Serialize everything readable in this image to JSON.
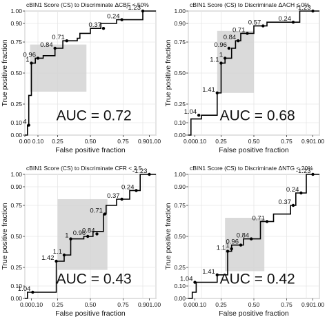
{
  "chart_data": [
    {
      "type": "line",
      "title": "cBIN1 Score (CS) to Discriminate ΔCBF < 50%",
      "xlabel": "False positive fraction",
      "ylabel": "True positive fraction",
      "xlim": [
        0,
        1
      ],
      "ylim": [
        0,
        1
      ],
      "x_ticks": [
        "0.00",
        "0.10",
        "0.25",
        "0.50",
        "0.75",
        "0.901.00"
      ],
      "y_ticks": [
        "0.00",
        "0.10",
        "0.25",
        "0.50",
        "0.75",
        "0.90",
        "1.00"
      ],
      "grid": true,
      "auc_label": "AUC = 0.72",
      "roc": [
        [
          0,
          0
        ],
        [
          0.02,
          0
        ],
        [
          0.02,
          0.08
        ],
        [
          0.03,
          0.08
        ],
        [
          0.03,
          0.32
        ],
        [
          0.05,
          0.32
        ],
        [
          0.05,
          0.58
        ],
        [
          0.08,
          0.58
        ],
        [
          0.08,
          0.62
        ],
        [
          0.14,
          0.62
        ],
        [
          0.14,
          0.64
        ],
        [
          0.23,
          0.64
        ],
        [
          0.23,
          0.7
        ],
        [
          0.29,
          0.7
        ],
        [
          0.29,
          0.76
        ],
        [
          0.4,
          0.76
        ],
        [
          0.4,
          0.78
        ],
        [
          0.42,
          0.78
        ],
        [
          0.42,
          0.82
        ],
        [
          0.5,
          0.82
        ],
        [
          0.5,
          0.86
        ],
        [
          0.58,
          0.86
        ],
        [
          0.58,
          0.9
        ],
        [
          0.7,
          0.9
        ],
        [
          0.7,
          0.93
        ],
        [
          0.9,
          0.93
        ],
        [
          0.9,
          1.0
        ],
        [
          1.0,
          1.0
        ]
      ],
      "points": [
        {
          "label": "-1.23",
          "x": 0.9,
          "y": 1.0
        },
        {
          "label": "0.24",
          "x": 0.74,
          "y": 0.93
        },
        {
          "label": "0.37",
          "x": 0.6,
          "y": 0.86
        },
        {
          "label": "0.71",
          "x": 0.32,
          "y": 0.76
        },
        {
          "label": "0.84",
          "x": 0.23,
          "y": 0.7
        },
        {
          "label": "0.96",
          "x": 0.1,
          "y": 0.62
        },
        {
          "label": "1",
          "x": 0.05,
          "y": 0.58
        },
        {
          "label": "4",
          "x": 0.03,
          "y": 0.08
        }
      ],
      "ci_box": {
        "x": [
          0.04,
          0.47
        ],
        "y": [
          0.35,
          0.73
        ]
      }
    },
    {
      "type": "line",
      "title": "cBIN1 Score (CS) to Discriminate ΔACH ≤ 0%",
      "xlabel": "False positive fraction",
      "ylabel": "True positive fraction",
      "xlim": [
        0,
        1
      ],
      "ylim": [
        0,
        1
      ],
      "x_ticks": [
        "0.000.10",
        "0.25",
        "0.50",
        "0.75",
        "0.901.00"
      ],
      "y_ticks": [
        "0.00",
        "0.10",
        "0.25",
        "0.50",
        "0.75",
        "0.90",
        "1.00"
      ],
      "grid": true,
      "auc_label": "AUC = 0.68",
      "roc": [
        [
          0,
          0
        ],
        [
          0.02,
          0
        ],
        [
          0.02,
          0.13
        ],
        [
          0.1,
          0.13
        ],
        [
          0.1,
          0.16
        ],
        [
          0.22,
          0.16
        ],
        [
          0.22,
          0.34
        ],
        [
          0.25,
          0.34
        ],
        [
          0.25,
          0.58
        ],
        [
          0.28,
          0.58
        ],
        [
          0.28,
          0.62
        ],
        [
          0.33,
          0.62
        ],
        [
          0.33,
          0.7
        ],
        [
          0.36,
          0.7
        ],
        [
          0.36,
          0.76
        ],
        [
          0.4,
          0.76
        ],
        [
          0.4,
          0.82
        ],
        [
          0.5,
          0.82
        ],
        [
          0.5,
          0.88
        ],
        [
          0.6,
          0.88
        ],
        [
          0.6,
          0.91
        ],
        [
          0.85,
          0.91
        ],
        [
          0.85,
          1.0
        ],
        [
          1.0,
          1.0
        ]
      ],
      "points": [
        {
          "label": "-1.23",
          "x": 0.95,
          "y": 1.0
        },
        {
          "label": "0.24",
          "x": 0.8,
          "y": 0.91
        },
        {
          "label": "0.57",
          "x": 0.57,
          "y": 0.88
        },
        {
          "label": "0.71",
          "x": 0.45,
          "y": 0.82
        },
        {
          "label": "0.84",
          "x": 0.38,
          "y": 0.76
        },
        {
          "label": "0.96",
          "x": 0.31,
          "y": 0.7
        },
        {
          "label": "1",
          "x": 0.28,
          "y": 0.62
        },
        {
          "label": "1.1",
          "x": 0.25,
          "y": 0.58
        },
        {
          "label": "1.41",
          "x": 0.22,
          "y": 0.34
        },
        {
          "label": "1.04",
          "x": 0.08,
          "y": 0.16
        }
      ],
      "ci_box": {
        "x": [
          0.22,
          0.5
        ],
        "y": [
          0.34,
          0.84
        ]
      }
    },
    {
      "type": "line",
      "title": "cBIN1 Score (CS) to Discriminate CFR < 2.5",
      "xlabel": "False positive fraction",
      "ylabel": "True positive fraction",
      "xlim": [
        0,
        1
      ],
      "ylim": [
        0,
        1
      ],
      "x_ticks": [
        "0.000.10",
        "0.25",
        "0.50",
        "0.75",
        "0.901.00"
      ],
      "y_ticks": [
        "0.00",
        "0.10",
        "0.25",
        "0.50",
        "0.75",
        "0.90",
        "1.00"
      ],
      "grid": true,
      "auc_label": "AUC = 0.43",
      "roc": [
        [
          0,
          0
        ],
        [
          0.02,
          0
        ],
        [
          0.02,
          0.05
        ],
        [
          0.24,
          0.05
        ],
        [
          0.24,
          0.3
        ],
        [
          0.3,
          0.3
        ],
        [
          0.3,
          0.35
        ],
        [
          0.35,
          0.35
        ],
        [
          0.35,
          0.48
        ],
        [
          0.45,
          0.48
        ],
        [
          0.45,
          0.5
        ],
        [
          0.52,
          0.5
        ],
        [
          0.52,
          0.54
        ],
        [
          0.6,
          0.54
        ],
        [
          0.6,
          0.68
        ],
        [
          0.62,
          0.68
        ],
        [
          0.62,
          0.75
        ],
        [
          0.7,
          0.75
        ],
        [
          0.7,
          0.8
        ],
        [
          0.8,
          0.8
        ],
        [
          0.8,
          0.87
        ],
        [
          0.88,
          0.87
        ],
        [
          0.88,
          1.0
        ],
        [
          1.0,
          1.0
        ]
      ],
      "points": [
        {
          "label": "-1.23",
          "x": 0.95,
          "y": 1.0
        },
        {
          "label": "0.24",
          "x": 0.85,
          "y": 0.87
        },
        {
          "label": "0.37",
          "x": 0.74,
          "y": 0.8
        },
        {
          "label": "0.71",
          "x": 0.61,
          "y": 0.68
        },
        {
          "label": "0.96",
          "x": 0.48,
          "y": 0.5
        },
        {
          "label": "0.84",
          "x": 0.55,
          "y": 0.52
        },
        {
          "label": "1",
          "x": 0.35,
          "y": 0.48
        },
        {
          "label": "1.1",
          "x": 0.3,
          "y": 0.35
        },
        {
          "label": "1.42",
          "x": 0.24,
          "y": 0.3
        },
        {
          "label": "1.04",
          "x": 0.06,
          "y": 0.05
        }
      ],
      "ci_box": {
        "x": [
          0.25,
          0.63
        ],
        "y": [
          0.23,
          0.8
        ]
      }
    },
    {
      "type": "line",
      "title": "cBIN1 Score (CS) to Discriminate ΔNTG < 20%",
      "xlabel": "False positive fraction",
      "ylabel": "True positive fraction",
      "xlim": [
        0,
        1
      ],
      "ylim": [
        0,
        1
      ],
      "x_ticks": [
        "0.000.10",
        "0.25",
        "0.50",
        "0.75",
        "0.901.00"
      ],
      "y_ticks": [
        "0.00",
        "0.10",
        "0.25",
        "0.50",
        "0.75",
        "0.90",
        "1.00"
      ],
      "grid": true,
      "auc_label": "AUC = 0.42",
      "roc": [
        [
          0,
          0
        ],
        [
          0.03,
          0
        ],
        [
          0.03,
          0.05
        ],
        [
          0.06,
          0.05
        ],
        [
          0.06,
          0.13
        ],
        [
          0.22,
          0.13
        ],
        [
          0.22,
          0.19
        ],
        [
          0.3,
          0.19
        ],
        [
          0.3,
          0.38
        ],
        [
          0.33,
          0.38
        ],
        [
          0.33,
          0.43
        ],
        [
          0.42,
          0.43
        ],
        [
          0.42,
          0.48
        ],
        [
          0.55,
          0.48
        ],
        [
          0.55,
          0.62
        ],
        [
          0.65,
          0.62
        ],
        [
          0.65,
          0.68
        ],
        [
          0.78,
          0.68
        ],
        [
          0.78,
          0.75
        ],
        [
          0.82,
          0.75
        ],
        [
          0.82,
          0.85
        ],
        [
          0.9,
          0.85
        ],
        [
          0.9,
          1.0
        ],
        [
          1.0,
          1.0
        ]
      ],
      "points": [
        {
          "label": "-1.23",
          "x": 0.95,
          "y": 1.0
        },
        {
          "label": "0.24",
          "x": 0.86,
          "y": 0.85
        },
        {
          "label": "0.37",
          "x": 0.8,
          "y": 0.75
        },
        {
          "label": "0.71",
          "x": 0.6,
          "y": 0.62
        },
        {
          "label": "0.84",
          "x": 0.48,
          "y": 0.48
        },
        {
          "label": "0.96",
          "x": 0.4,
          "y": 0.43
        },
        {
          "label": "1",
          "x": 0.33,
          "y": 0.4
        },
        {
          "label": "1.1",
          "x": 0.3,
          "y": 0.38
        },
        {
          "label": "1.41",
          "x": 0.22,
          "y": 0.19
        },
        {
          "label": "1.04",
          "x": 0.05,
          "y": 0.13
        }
      ],
      "ci_box": {
        "x": [
          0.28,
          0.58
        ],
        "y": [
          0.22,
          0.65
        ]
      }
    }
  ],
  "colors": {
    "line": "#000000",
    "ci_box": "#d4d4d4",
    "grid": "#e6e6e6",
    "panel_bg": "#ffffff",
    "panel_border": "#333333"
  }
}
